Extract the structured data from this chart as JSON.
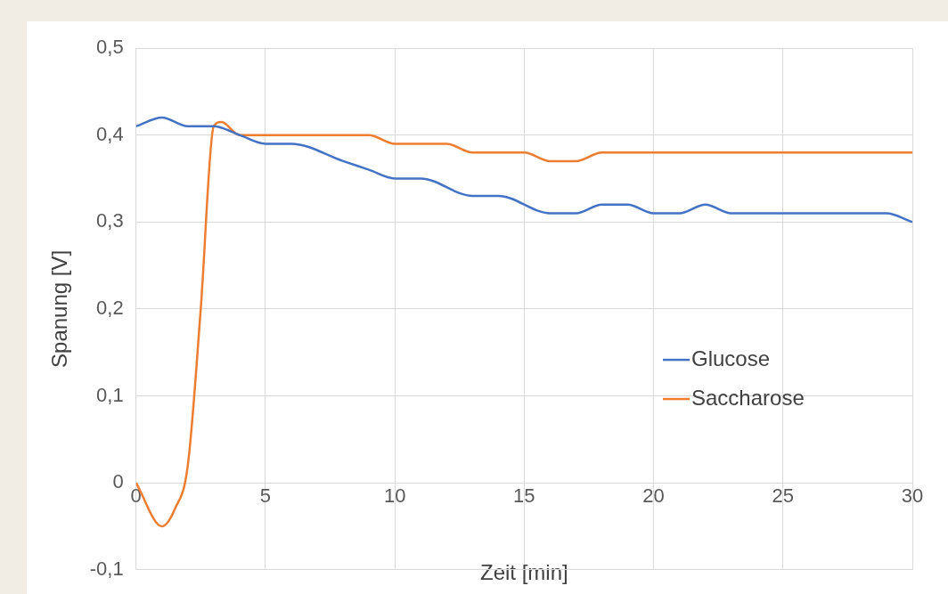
{
  "chart_data": {
    "type": "line",
    "xlabel": "Zeit [min]",
    "ylabel": "Spanung [V]",
    "xlim": [
      0,
      30
    ],
    "xticks": [
      0,
      5,
      10,
      15,
      20,
      25,
      30
    ],
    "ylim": [
      -0.1,
      0.5
    ],
    "yticks": [
      {
        "value": -0.1,
        "label": "-0,1"
      },
      {
        "value": 0,
        "label": "0"
      },
      {
        "value": 0.1,
        "label": "0,1"
      },
      {
        "value": 0.2,
        "label": "0,2"
      },
      {
        "value": 0.3,
        "label": "0,3"
      },
      {
        "value": 0.4,
        "label": "0,4"
      },
      {
        "value": 0.5,
        "label": "0,5"
      }
    ],
    "grid": true,
    "legend": "right",
    "marker": "none",
    "line_style": "solid",
    "series": [
      {
        "name": "Glucose",
        "color": "#4472c4",
        "x": [
          0,
          1,
          2,
          3,
          4,
          5,
          6,
          8,
          9,
          10,
          11,
          13,
          14,
          16,
          17,
          18,
          19,
          20,
          21,
          22,
          23,
          24,
          28,
          29,
          30
        ],
        "values": [
          0.41,
          0.42,
          0.41,
          0.41,
          0.4,
          0.39,
          0.39,
          0.37,
          0.36,
          0.35,
          0.35,
          0.33,
          0.33,
          0.31,
          0.31,
          0.32,
          0.32,
          0.31,
          0.31,
          0.32,
          0.31,
          0.31,
          0.31,
          0.31,
          0.3
        ]
      },
      {
        "name": "Saccharose",
        "color": "#ed7d31",
        "x": [
          0,
          1,
          1.5,
          2,
          2.5,
          3,
          3.3,
          4,
          5,
          9,
          10,
          12,
          13,
          15,
          16,
          17,
          18,
          30
        ],
        "values": [
          0,
          -0.05,
          -0.03,
          0.02,
          0.2,
          0.41,
          0.415,
          0.4,
          0.4,
          0.4,
          0.39,
          0.39,
          0.38,
          0.38,
          0.37,
          0.37,
          0.38,
          0.38
        ]
      }
    ]
  }
}
